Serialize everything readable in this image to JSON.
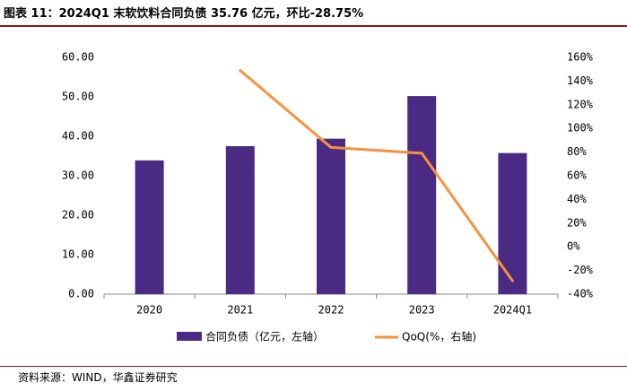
{
  "title": "图表 11：2024Q1 末软饮料合同负债 35.76 亿元，环比-28.75%",
  "source": "资料来源：WIND，华鑫证券研究",
  "colors": {
    "bar": "#4b2a84",
    "line": "#f5923e",
    "rule": "#8b1a1a"
  },
  "chart_data": {
    "type": "bar",
    "categories": [
      "2020",
      "2021",
      "2022",
      "2023",
      "2024Q1"
    ],
    "series": [
      {
        "name": "合同负债（亿元，左轴）",
        "type": "bar",
        "axis": "left",
        "values": [
          33.9,
          37.5,
          39.4,
          50.2,
          35.76
        ]
      },
      {
        "name": "QoQ(%，右轴)",
        "type": "line",
        "axis": "right",
        "values": [
          null,
          149,
          84,
          79,
          -28.75
        ]
      }
    ],
    "left_axis": {
      "ylim": [
        0,
        60
      ],
      "ticks": [
        "0.00",
        "10.00",
        "20.00",
        "30.00",
        "40.00",
        "50.00",
        "60.00"
      ]
    },
    "right_axis": {
      "ylim": [
        -40,
        160
      ],
      "ticks": [
        "-40%",
        "-20%",
        "0%",
        "20%",
        "40%",
        "60%",
        "80%",
        "100%",
        "120%",
        "140%",
        "160%"
      ]
    },
    "grid": false,
    "legend_position": "bottom"
  }
}
